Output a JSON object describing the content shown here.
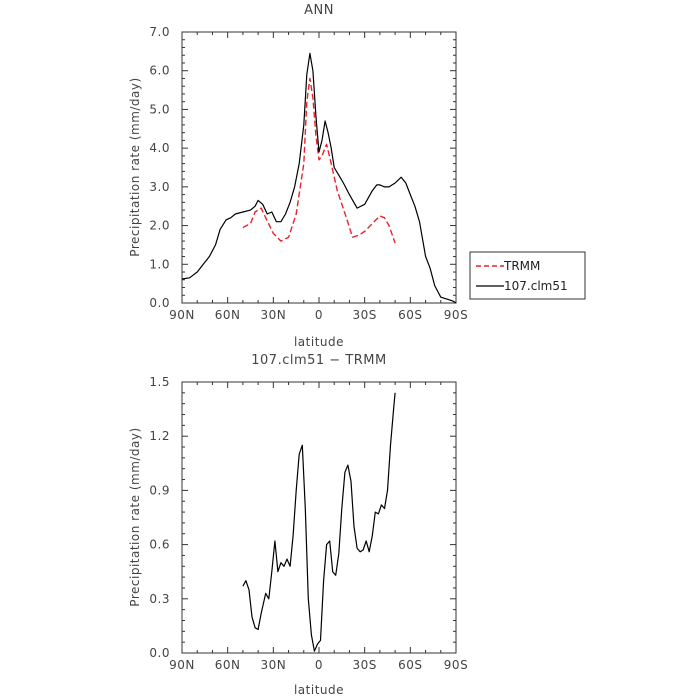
{
  "chart_data": [
    {
      "type": "line",
      "title": "ANN",
      "xlabel": "latitude",
      "ylabel": "Precipitation rate (mm/day)",
      "xlim": [
        90,
        -90
      ],
      "ylim": [
        0,
        7
      ],
      "x_ticks": [
        90,
        60,
        30,
        0,
        -30,
        -60,
        -90
      ],
      "x_tick_labels": [
        "90N",
        "60N",
        "30N",
        "0",
        "30S",
        "60S",
        "90S"
      ],
      "y_ticks": [
        0,
        1,
        2,
        3,
        4,
        5,
        6,
        7
      ],
      "y_tick_labels": [
        "0.0",
        "1.0",
        "2.0",
        "3.0",
        "4.0",
        "5.0",
        "6.0",
        "7.0"
      ],
      "legend_position": "right",
      "series": [
        {
          "name": "TRMM",
          "color": "#e8222a",
          "dash": "dashed",
          "x": [
            50,
            45,
            42,
            38,
            35,
            30,
            25,
            20,
            15,
            10,
            8,
            6,
            4,
            2,
            0,
            -2,
            -5,
            -8,
            -12,
            -18,
            -22,
            -26,
            -30,
            -35,
            -40,
            -43,
            -46,
            -50
          ],
          "y": [
            1.95,
            2.05,
            2.35,
            2.45,
            2.2,
            1.8,
            1.6,
            1.7,
            2.3,
            3.6,
            5.2,
            5.8,
            5.3,
            4.3,
            3.7,
            3.8,
            4.1,
            3.6,
            2.9,
            2.2,
            1.7,
            1.75,
            1.85,
            2.05,
            2.25,
            2.2,
            2.0,
            1.55
          ]
        },
        {
          "name": "107.clm51",
          "color": "#000000",
          "dash": "solid",
          "x": [
            90,
            85,
            80,
            76,
            72,
            68,
            65,
            61,
            58,
            55,
            50,
            45,
            42,
            40,
            37,
            34,
            31,
            28,
            25,
            22,
            19,
            16,
            13,
            10,
            8,
            6,
            4,
            2,
            0,
            -2,
            -4,
            -6,
            -8,
            -10,
            -13,
            -16,
            -20,
            -25,
            -30,
            -35,
            -38,
            -40,
            -43,
            -46,
            -50,
            -54,
            -57,
            -60,
            -63,
            -66,
            -70,
            -73,
            -76,
            -80,
            -84,
            -88,
            -90
          ],
          "y": [
            0.62,
            0.65,
            0.8,
            1.0,
            1.2,
            1.5,
            1.9,
            2.15,
            2.2,
            2.3,
            2.35,
            2.4,
            2.5,
            2.65,
            2.55,
            2.3,
            2.35,
            2.1,
            2.1,
            2.3,
            2.6,
            3.0,
            3.6,
            4.6,
            5.9,
            6.45,
            6.0,
            4.8,
            3.9,
            4.2,
            4.7,
            4.4,
            4.0,
            3.5,
            3.3,
            3.1,
            2.8,
            2.45,
            2.55,
            2.9,
            3.05,
            3.05,
            3.0,
            3.0,
            3.1,
            3.25,
            3.1,
            2.8,
            2.5,
            2.1,
            1.2,
            0.9,
            0.45,
            0.15,
            0.1,
            0.05,
            0.0
          ]
        }
      ]
    },
    {
      "type": "line",
      "title": "107.clm51 − TRMM",
      "xlabel": "latitude",
      "ylabel": "Precipitation rate (mm/day)",
      "xlim": [
        90,
        -90
      ],
      "ylim": [
        0,
        1.5
      ],
      "x_ticks": [
        90,
        60,
        30,
        0,
        -30,
        -60,
        -90
      ],
      "x_tick_labels": [
        "90N",
        "60N",
        "30N",
        "0",
        "30S",
        "60S",
        "90S"
      ],
      "y_ticks": [
        0,
        0.3,
        0.6,
        0.9,
        1.2,
        1.5
      ],
      "y_tick_labels": [
        "0.0",
        "0.3",
        "0.6",
        "0.9",
        "1.2",
        "1.5"
      ],
      "series": [
        {
          "color": "#000000",
          "dash": "solid",
          "x": [
            50,
            48,
            46,
            44,
            42,
            40,
            38,
            35,
            33,
            31,
            29,
            27,
            25,
            23,
            21,
            19,
            17,
            15,
            13,
            11,
            9,
            7,
            5,
            3,
            1,
            -1,
            -3,
            -5,
            -7,
            -9,
            -11,
            -13,
            -15,
            -17,
            -19,
            -21,
            -23,
            -25,
            -27,
            -29,
            -31,
            -33,
            -35,
            -37,
            -39,
            -41,
            -43,
            -45,
            -47,
            -49,
            -50
          ],
          "y": [
            0.37,
            0.4,
            0.35,
            0.2,
            0.14,
            0.13,
            0.22,
            0.33,
            0.3,
            0.45,
            0.62,
            0.45,
            0.5,
            0.48,
            0.52,
            0.48,
            0.65,
            0.9,
            1.1,
            1.15,
            0.8,
            0.3,
            0.1,
            0.01,
            0.05,
            0.07,
            0.4,
            0.6,
            0.62,
            0.45,
            0.43,
            0.55,
            0.8,
            1.0,
            1.04,
            0.95,
            0.7,
            0.58,
            0.56,
            0.57,
            0.62,
            0.56,
            0.65,
            0.78,
            0.77,
            0.82,
            0.8,
            0.9,
            1.15,
            1.35,
            1.44
          ]
        }
      ]
    }
  ]
}
